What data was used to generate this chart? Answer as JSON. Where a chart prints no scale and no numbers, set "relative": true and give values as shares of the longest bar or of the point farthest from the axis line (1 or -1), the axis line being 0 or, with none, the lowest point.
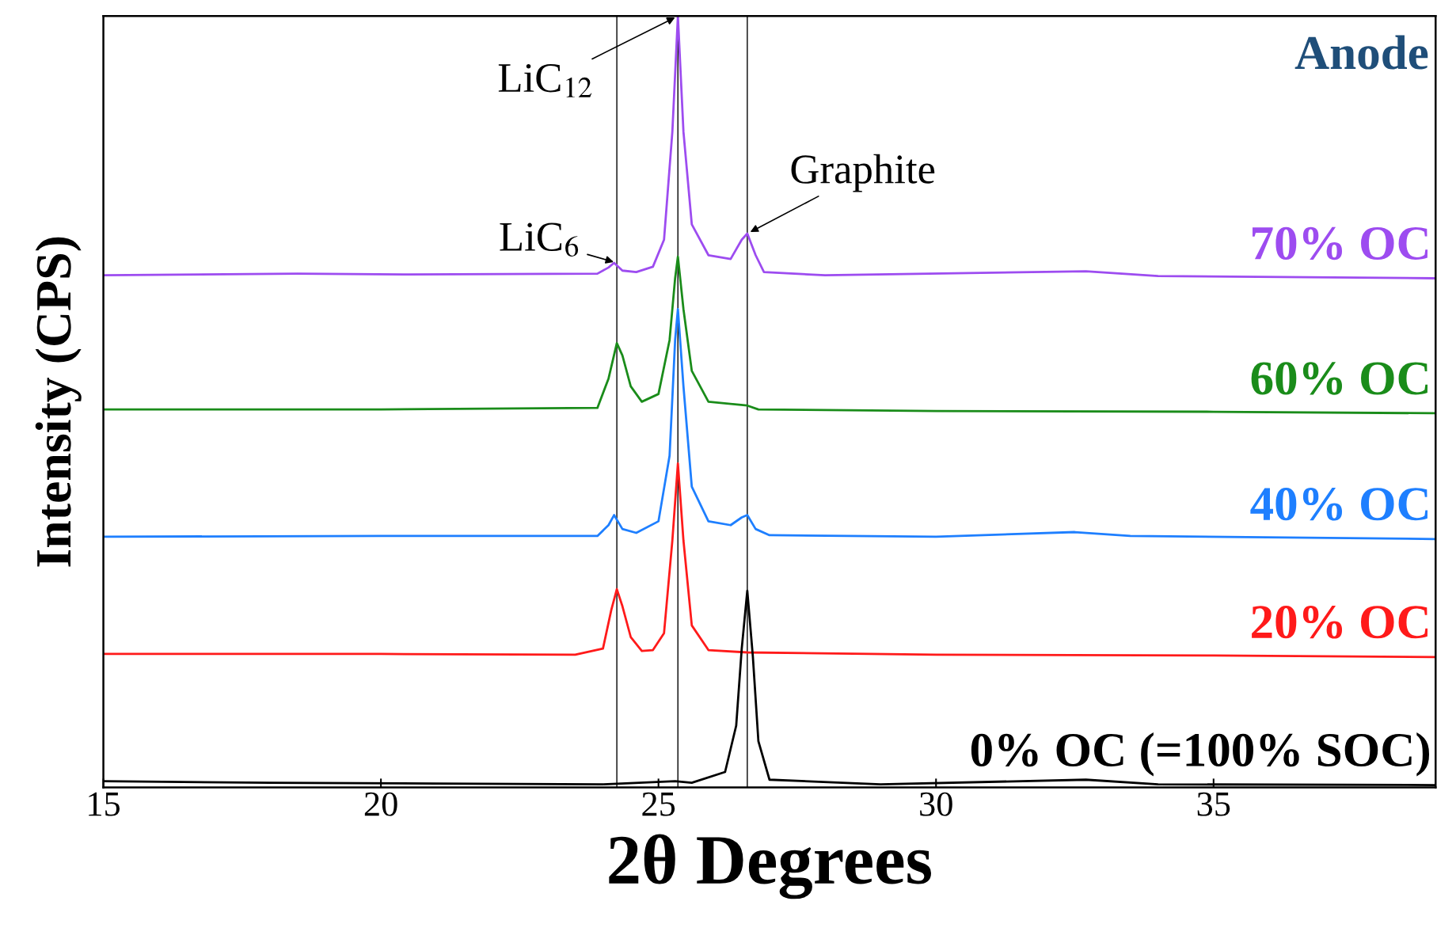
{
  "chart_data": {
    "type": "line",
    "relative": true,
    "xlabel": "2θ Degrees",
    "ylabel": "Intensity (CPS)",
    "xlim": [
      15,
      39
    ],
    "xticks": [
      15,
      20,
      25,
      30,
      35
    ],
    "tick_labels": "x",
    "legend": false,
    "grid": false,
    "series": [
      {
        "name": "70% OC",
        "color": "#9d4cf0",
        "x": [
          15,
          18.5,
          20.5,
          23.9,
          24.1,
          24.2,
          24.35,
          24.6,
          24.9,
          25.1,
          25.25,
          25.35,
          25.45,
          25.6,
          25.9,
          26.3,
          26.5,
          26.6,
          26.75,
          26.9,
          28,
          32.7,
          34,
          39
        ],
        "values": [
          0.664,
          0.666,
          0.665,
          0.666,
          0.674,
          0.68,
          0.67,
          0.668,
          0.675,
          0.71,
          0.85,
          1.0,
          0.85,
          0.73,
          0.69,
          0.685,
          0.71,
          0.718,
          0.69,
          0.668,
          0.664,
          0.669,
          0.663,
          0.66
        ]
      },
      {
        "name": "60% OC",
        "color": "#1a8c1a",
        "x": [
          15,
          20,
          23.9,
          24.1,
          24.25,
          24.35,
          24.5,
          24.7,
          25.0,
          25.2,
          25.3,
          25.35,
          25.45,
          25.6,
          25.9,
          26.6,
          26.8,
          30,
          35,
          39
        ],
        "values": [
          0.49,
          0.49,
          0.492,
          0.53,
          0.576,
          0.56,
          0.52,
          0.5,
          0.51,
          0.58,
          0.66,
          0.688,
          0.62,
          0.54,
          0.5,
          0.495,
          0.49,
          0.488,
          0.487,
          0.485
        ]
      },
      {
        "name": "40% OC",
        "color": "#1e7fff",
        "x": [
          15,
          20,
          23.9,
          24.1,
          24.2,
          24.35,
          24.6,
          25.0,
          25.2,
          25.3,
          25.35,
          25.45,
          25.6,
          25.9,
          26.3,
          26.5,
          26.6,
          26.75,
          27.0,
          30,
          32.5,
          33.5,
          39
        ],
        "values": [
          0.325,
          0.326,
          0.326,
          0.34,
          0.353,
          0.335,
          0.33,
          0.345,
          0.43,
          0.58,
          0.62,
          0.52,
          0.39,
          0.345,
          0.34,
          0.35,
          0.353,
          0.335,
          0.327,
          0.325,
          0.331,
          0.326,
          0.322
        ]
      },
      {
        "name": "20% OC",
        "color": "#ff1a1a",
        "x": [
          15,
          20,
          23.5,
          24.0,
          24.15,
          24.25,
          24.35,
          24.5,
          24.7,
          24.9,
          25.1,
          25.25,
          25.35,
          25.45,
          25.6,
          25.9,
          26.6,
          30,
          35,
          39
        ],
        "values": [
          0.173,
          0.173,
          0.172,
          0.18,
          0.23,
          0.257,
          0.235,
          0.195,
          0.177,
          0.178,
          0.2,
          0.32,
          0.42,
          0.32,
          0.21,
          0.178,
          0.175,
          0.172,
          0.171,
          0.169
        ]
      },
      {
        "name": "0% OC (=100% SOC)",
        "color": "#000000",
        "x": [
          15,
          18,
          21,
          24,
          25.3,
          25.6,
          26.2,
          26.4,
          26.5,
          26.6,
          26.7,
          26.8,
          27.0,
          29,
          32.7,
          34,
          39
        ],
        "values": [
          0.008,
          0.006,
          0.005,
          0.004,
          0.008,
          0.006,
          0.02,
          0.08,
          0.18,
          0.255,
          0.17,
          0.06,
          0.01,
          0.004,
          0.01,
          0.004,
          0.003
        ]
      }
    ],
    "ref_lines": [
      {
        "axis": "x",
        "value": 24.25,
        "color": "#000000"
      },
      {
        "axis": "x",
        "value": 25.35,
        "color": "#000000"
      },
      {
        "axis": "x",
        "value": 26.6,
        "color": "#000000"
      }
    ],
    "annotations": [
      {
        "text": "LiC$_{6}$",
        "x": 24.25,
        "y": 0.68
      },
      {
        "text": "LiC$_{12}$",
        "x": 25.35,
        "y": 1.0
      },
      {
        "text": "Graphite",
        "x": 26.6,
        "y": 0.718
      },
      "Anode"
    ]
  }
}
